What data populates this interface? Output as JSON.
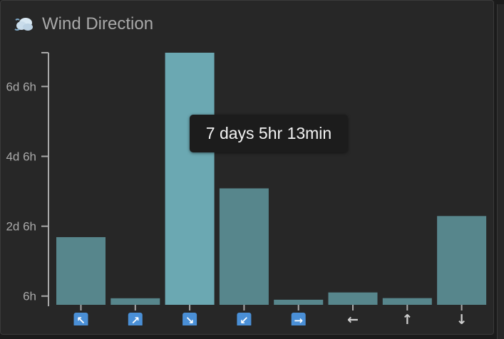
{
  "card": {
    "title": "Wind Direction",
    "icon": "wind-cloud-icon"
  },
  "tooltip": {
    "text": "7 days 5hr 13min"
  },
  "colors": {
    "bar": "#57868c",
    "bar_highlight": "#6ba8b2",
    "card_bg": "#272727",
    "axis": "#a9a9a9"
  },
  "chart_data": {
    "type": "bar",
    "unit": "hours",
    "categories": [
      "↖",
      "↗",
      "↘",
      "↙",
      "→",
      "←",
      "↑",
      "↓"
    ],
    "category_icons": [
      "arrow-up-left-icon",
      "arrow-up-right-icon",
      "arrow-down-right-icon",
      "arrow-down-left-icon",
      "arrow-right-icon",
      "arrow-left-icon",
      "arrow-up-icon",
      "arrow-down-icon"
    ],
    "values": [
      46.5,
      4.5,
      173.2,
      80,
      3.5,
      8.5,
      4.6,
      61
    ],
    "highlight_index": 2,
    "yticks": [
      {
        "value": 6,
        "label": "6h"
      },
      {
        "value": 54,
        "label": "2d 6h"
      },
      {
        "value": 102,
        "label": "4d 6h"
      },
      {
        "value": 150,
        "label": "6d 6h"
      }
    ],
    "ylim": [
      0,
      173.2
    ],
    "grid": false,
    "title": "Wind Direction"
  }
}
